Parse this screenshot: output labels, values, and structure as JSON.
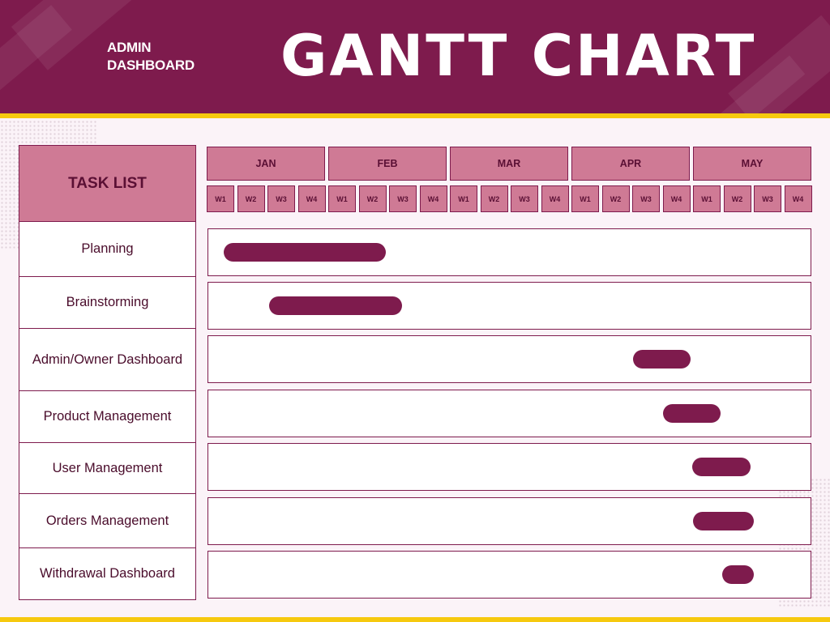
{
  "header": {
    "subtitle": "ADMIN\nDASHBOARD",
    "title": "GANTT CHART"
  },
  "colors": {
    "header_bg": "#7e1b4d",
    "accent_stripe": "#f6c90e",
    "cell_pink": "#cf7a95",
    "bar": "#7e1b4d",
    "page_bg": "#fbf3f8"
  },
  "chart_data": {
    "type": "gantt",
    "task_header": "TASK LIST",
    "months": [
      "JAN",
      "FEB",
      "MAR",
      "APR",
      "MAY"
    ],
    "weeks": [
      "W1",
      "W2",
      "W3",
      "W4"
    ],
    "tasks": [
      {
        "name": "Planning",
        "start": 0.5,
        "end": 5.85
      },
      {
        "name": "Brainstorming",
        "start": 2.0,
        "end": 6.4
      },
      {
        "name": "Admin/Owner Dashboard",
        "start": 14.0,
        "end": 15.9
      },
      {
        "name": "Product Management",
        "start": 15.0,
        "end": 16.9
      },
      {
        "name": "User Management",
        "start": 15.95,
        "end": 17.9
      },
      {
        "name": "Orders Management",
        "start": 16.0,
        "end": 18.0
      },
      {
        "name": "Withdrawal Dashboard",
        "start": 16.95,
        "end": 18.0
      }
    ]
  }
}
